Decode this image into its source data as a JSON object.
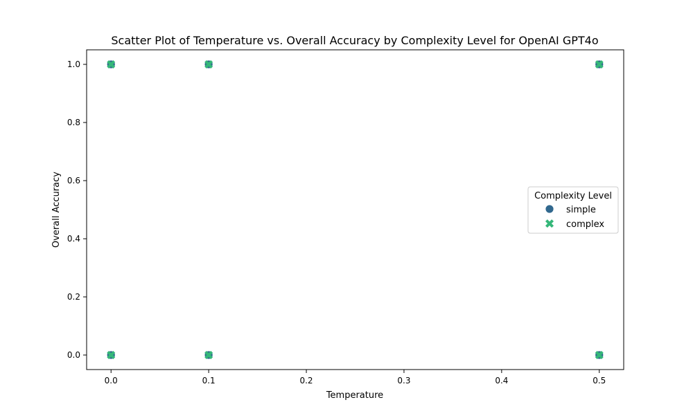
{
  "chart_data": {
    "type": "scatter",
    "title": "Scatter Plot of Temperature vs. Overall Accuracy by Complexity Level for OpenAI GPT4o",
    "xlabel": "Temperature",
    "ylabel": "Overall Accuracy",
    "xlim": [
      -0.025,
      0.525
    ],
    "ylim": [
      -0.05,
      1.05
    ],
    "x_ticks": [
      "0.0",
      "0.1",
      "0.2",
      "0.3",
      "0.4",
      "0.5"
    ],
    "y_ticks": [
      "0.0",
      "0.2",
      "0.4",
      "0.6",
      "0.8",
      "1.0"
    ],
    "grid": false,
    "legend": {
      "title": "Complexity Level",
      "placement": "center-right"
    },
    "series": [
      {
        "name": "simple",
        "marker": "circle",
        "color": "#31688e",
        "points": [
          {
            "x": 0.0,
            "y": 1.0
          },
          {
            "x": 0.0,
            "y": 0.0
          },
          {
            "x": 0.1,
            "y": 1.0
          },
          {
            "x": 0.1,
            "y": 0.0
          },
          {
            "x": 0.5,
            "y": 1.0
          },
          {
            "x": 0.5,
            "y": 0.0
          }
        ]
      },
      {
        "name": "complex",
        "marker": "x",
        "color": "#35b779",
        "points": [
          {
            "x": 0.0,
            "y": 1.0
          },
          {
            "x": 0.0,
            "y": 0.0
          },
          {
            "x": 0.1,
            "y": 1.0
          },
          {
            "x": 0.1,
            "y": 0.0
          },
          {
            "x": 0.5,
            "y": 1.0
          },
          {
            "x": 0.5,
            "y": 0.0
          }
        ]
      }
    ]
  }
}
